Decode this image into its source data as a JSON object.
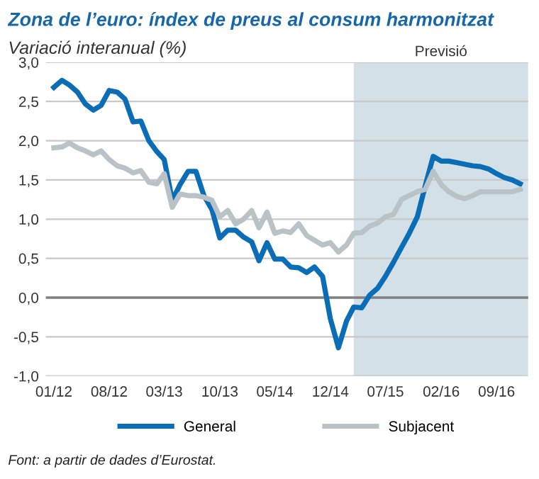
{
  "chart_data": {
    "type": "line",
    "title": "Zona de l’euro: índex de preus al consum harmonitzat",
    "subtitle": "Variació interanual (%)",
    "annotations": [
      "Font: a partir de dades d’Eurostat."
    ],
    "x": [
      "2012-01",
      "2012-02",
      "2012-03",
      "2012-04",
      "2012-05",
      "2012-06",
      "2012-07",
      "2012-08",
      "2012-09",
      "2012-10",
      "2012-11",
      "2012-12",
      "2013-01",
      "2013-02",
      "2013-03",
      "2013-04",
      "2013-05",
      "2013-06",
      "2013-07",
      "2013-08",
      "2013-09",
      "2013-10",
      "2013-11",
      "2013-12",
      "2014-01",
      "2014-02",
      "2014-03",
      "2014-04",
      "2014-05",
      "2014-06",
      "2014-07",
      "2014-08",
      "2014-09",
      "2014-10",
      "2014-11",
      "2014-12",
      "2015-01",
      "2015-02",
      "2015-03",
      "2015-04",
      "2015-05",
      "2015-06",
      "2015-07",
      "2015-08",
      "2015-09",
      "2015-10",
      "2015-11",
      "2015-12",
      "2016-01",
      "2016-02",
      "2016-03",
      "2016-04",
      "2016-05",
      "2016-06",
      "2016-07",
      "2016-08",
      "2016-09",
      "2016-10",
      "2016-11",
      "2016-12"
    ],
    "series": [
      {
        "name": "General",
        "color": "#0a6db5",
        "values": [
          2.68,
          2.77,
          2.71,
          2.62,
          2.47,
          2.39,
          2.45,
          2.64,
          2.62,
          2.53,
          2.24,
          2.25,
          2.0,
          1.86,
          1.76,
          1.24,
          1.44,
          1.61,
          1.61,
          1.3,
          1.12,
          0.76,
          0.86,
          0.86,
          0.77,
          0.71,
          0.47,
          0.7,
          0.49,
          0.49,
          0.39,
          0.38,
          0.32,
          0.39,
          0.27,
          -0.27,
          -0.64,
          -0.3,
          -0.12,
          -0.13,
          0.03,
          0.12,
          0.27,
          0.45,
          0.64,
          0.82,
          1.03,
          1.42,
          1.8,
          1.74,
          1.74,
          1.72,
          1.7,
          1.68,
          1.67,
          1.64,
          1.58,
          1.53,
          1.5,
          1.45
        ]
      },
      {
        "name": "Subjacent",
        "color": "#b9c2c6",
        "values": [
          1.91,
          1.92,
          1.97,
          1.91,
          1.87,
          1.82,
          1.87,
          1.76,
          1.68,
          1.65,
          1.59,
          1.62,
          1.47,
          1.45,
          1.58,
          1.15,
          1.32,
          1.3,
          1.3,
          1.28,
          1.24,
          1.03,
          1.11,
          0.94,
          1.0,
          1.11,
          0.89,
          1.09,
          0.82,
          0.85,
          0.83,
          0.94,
          0.79,
          0.73,
          0.67,
          0.7,
          0.58,
          0.67,
          0.82,
          0.83,
          0.91,
          0.95,
          1.03,
          1.06,
          1.25,
          1.3,
          1.35,
          1.38,
          1.61,
          1.44,
          1.35,
          1.29,
          1.26,
          1.3,
          1.35,
          1.35,
          1.35,
          1.35,
          1.35,
          1.38
        ]
      }
    ],
    "xlim": [
      "2011-12",
      "2017-01"
    ],
    "xticks": [
      {
        "value": "2012-01",
        "label": "01/12"
      },
      {
        "value": "2012-08",
        "label": "08/12"
      },
      {
        "value": "2013-03",
        "label": "03/13"
      },
      {
        "value": "2013-10",
        "label": "10/13"
      },
      {
        "value": "2014-05",
        "label": "05/14"
      },
      {
        "value": "2014-12",
        "label": "12/14"
      },
      {
        "value": "2015-07",
        "label": "07/15"
      },
      {
        "value": "2016-02",
        "label": "02/16"
      },
      {
        "value": "2016-09",
        "label": "09/16"
      }
    ],
    "ylim": [
      -1.0,
      3.0
    ],
    "yticks": [
      {
        "value": -1.0,
        "label": "-1,0"
      },
      {
        "value": -0.5,
        "label": "-0,5"
      },
      {
        "value": 0,
        "label": "0,0"
      },
      {
        "value": 0.5,
        "label": "0,5"
      },
      {
        "value": 1.0,
        "label": "1,0"
      },
      {
        "value": 1.5,
        "label": "1,5"
      },
      {
        "value": 2.0,
        "label": "2,0"
      },
      {
        "value": 2.5,
        "label": "2,5"
      },
      {
        "value": 3.0,
        "label": "3,0"
      }
    ],
    "bands": [
      {
        "axis": "x",
        "from": "2015-03",
        "to": "2017-01",
        "label": "Previsió",
        "color": "#d3e0e8"
      }
    ],
    "grid": "y",
    "legend": "bottom",
    "marker": "none",
    "line_style": "solid"
  }
}
